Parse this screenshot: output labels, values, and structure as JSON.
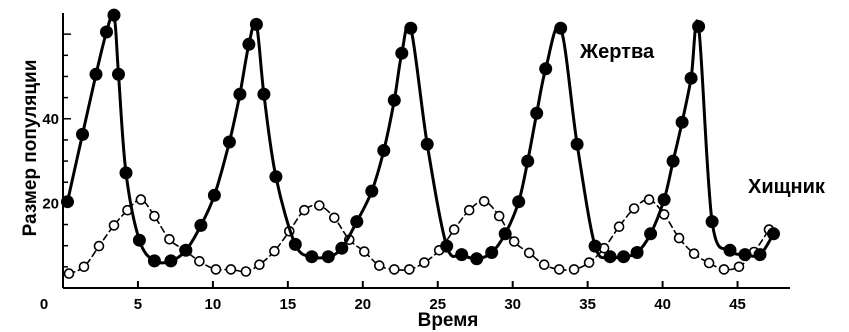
{
  "chart_data": {
    "type": "line",
    "title": "",
    "xlabel": "Время",
    "ylabel": "Размер популяции",
    "x_ticks": [
      "0",
      "5",
      "10",
      "15",
      "20",
      "25",
      "30",
      "35",
      "40",
      "45"
    ],
    "y_ticks": [
      "20",
      "40"
    ],
    "xlim": [
      0,
      48.5
    ],
    "ylim": [
      0,
      65
    ],
    "grid": false,
    "series": [
      {
        "name": "Жертва",
        "marker": "filled-circle",
        "line": "solid",
        "color": "#000000",
        "x": [
          0.3,
          1.3,
          2.2,
          2.9,
          3.4,
          3.7,
          4.2,
          5.1,
          6.1,
          7.2,
          8.2,
          9.2,
          10.1,
          11.1,
          11.8,
          12.4,
          12.9,
          13.4,
          14.2,
          15.5,
          16.6,
          17.7,
          18.6,
          19.6,
          20.6,
          21.4,
          22.1,
          22.6,
          23.2,
          24.3,
          25.6,
          26.6,
          27.6,
          28.6,
          29.5,
          30.4,
          31.0,
          31.6,
          32.2,
          33.2,
          34.3,
          35.5,
          36.5,
          37.4,
          38.3,
          39.2,
          40.1,
          40.7,
          41.3,
          41.9,
          42.4,
          43.3,
          44.5,
          45.5,
          46.5,
          47.4
        ],
        "y": [
          20.4,
          36.3,
          50.5,
          60.5,
          64.5,
          50.5,
          27.2,
          11.3,
          6.4,
          6.4,
          8.9,
          14.8,
          21.9,
          34.5,
          45.8,
          57.6,
          62.3,
          45.8,
          26.3,
          10.3,
          7.4,
          7.4,
          9.4,
          15.7,
          22.9,
          32.5,
          44.4,
          55.5,
          61.4,
          34.0,
          9.9,
          7.9,
          6.9,
          8.4,
          12.8,
          20.4,
          30.0,
          41.3,
          51.8,
          61.4,
          34.0,
          9.9,
          7.4,
          7.4,
          8.4,
          12.8,
          20.9,
          30.0,
          39.2,
          49.6,
          61.8,
          15.7,
          8.9,
          7.9,
          7.9,
          12.8
        ]
      },
      {
        "name": "Хищник",
        "marker": "open-circle",
        "line": "dashed",
        "color": "#000000",
        "x": [
          0.4,
          1.4,
          2.4,
          3.4,
          4.3,
          5.2,
          6.1,
          7.1,
          8.1,
          9.1,
          10.2,
          11.2,
          12.2,
          13.1,
          14.1,
          15.1,
          16.1,
          17.1,
          18.1,
          19.1,
          20.1,
          21.1,
          22.1,
          23.1,
          24.1,
          25.1,
          26.1,
          27.1,
          28.1,
          29.1,
          30.1,
          31.1,
          32.1,
          33.1,
          34.1,
          35.1,
          36.1,
          37.1,
          38.1,
          39.1,
          40.1,
          41.1,
          42.1,
          43.1,
          44.1,
          45.1,
          46.1,
          47.1
        ],
        "y": [
          3.4,
          5.0,
          9.9,
          14.8,
          18.4,
          20.9,
          17.0,
          11.5,
          9.0,
          6.3,
          4.4,
          4.4,
          3.9,
          5.5,
          8.7,
          13.4,
          18.4,
          19.5,
          16.6,
          11.4,
          8.6,
          5.3,
          4.4,
          4.4,
          6.0,
          8.9,
          13.8,
          18.4,
          20.5,
          17.0,
          11.0,
          8.3,
          5.5,
          4.4,
          4.4,
          6.0,
          9.4,
          14.5,
          18.8,
          20.9,
          17.4,
          11.8,
          8.1,
          5.9,
          4.4,
          5.0,
          8.5,
          13.8
        ]
      }
    ]
  }
}
